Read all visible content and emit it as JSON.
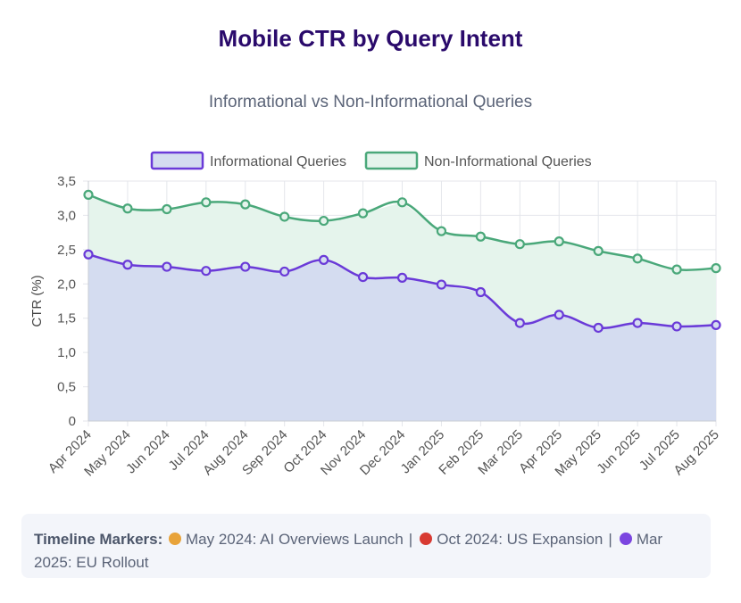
{
  "chart_data": {
    "type": "area",
    "title": "Mobile CTR by Query Intent",
    "subtitle": "Informational vs Non-Informational Queries",
    "ylabel": "CTR (%)",
    "ylim": [
      0,
      3.5
    ],
    "yticks": [
      "0",
      "0,5",
      "1,0",
      "1,5",
      "2,0",
      "2,5",
      "3,0",
      "3,5"
    ],
    "yticks_values": [
      0,
      0.5,
      1.0,
      1.5,
      2.0,
      2.5,
      3.0,
      3.5
    ],
    "legend_position": "top",
    "grid": true,
    "categories": [
      "Apr 2024",
      "May 2024",
      "Jun 2024",
      "Jul 2024",
      "Aug 2024",
      "Sep 2024",
      "Oct 2024",
      "Nov 2024",
      "Dec 2024",
      "Jan 2025",
      "Feb 2025",
      "Mar 2025",
      "Apr 2025",
      "May 2025",
      "Jun 2025",
      "Jul 2025",
      "Aug 2025"
    ],
    "series": [
      {
        "name": "Informational Queries",
        "color": "#6a3ad8",
        "fill": "#d4dcf0",
        "values": [
          2.43,
          2.28,
          2.25,
          2.19,
          2.25,
          2.18,
          2.35,
          2.1,
          2.09,
          1.99,
          1.88,
          1.43,
          1.55,
          1.36,
          1.43,
          1.38,
          1.4
        ]
      },
      {
        "name": "Non-Informational Queries",
        "color": "#4aa87a",
        "fill": "#e5f4ec",
        "values": [
          3.3,
          3.1,
          3.09,
          3.19,
          3.16,
          2.98,
          2.92,
          3.03,
          3.19,
          2.77,
          2.69,
          2.58,
          2.62,
          2.48,
          2.37,
          2.21,
          2.23
        ]
      }
    ]
  },
  "markers": {
    "label": "Timeline Markers:",
    "items": [
      {
        "color": "#e8a33a",
        "text": "May 2024: AI Overviews Launch"
      },
      {
        "color": "#d83a32",
        "text": "Oct 2024: US Expansion"
      },
      {
        "color": "#7b45e0",
        "text": "Mar 2025: EU Rollout"
      }
    ],
    "separator": "|"
  }
}
